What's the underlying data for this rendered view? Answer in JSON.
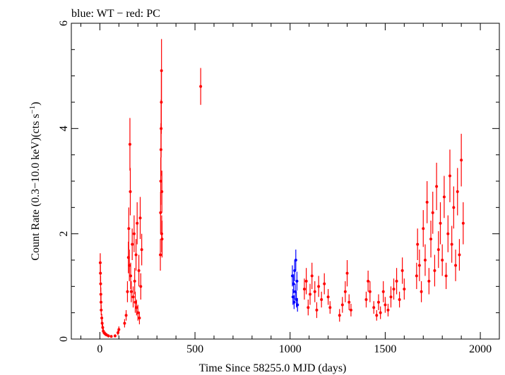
{
  "chart_data": {
    "type": "scatter",
    "title": "blue: WT − red: PC",
    "xlabel": "Time Since 58255.0 MJD (days)",
    "ylabel_main": "Count Rate (0.3−10.0 keV)(cts s",
    "ylabel_sup": "−1",
    "ylabel_close": ")",
    "xlim": [
      -150,
      2100
    ],
    "ylim": [
      0,
      6
    ],
    "x_ticks": [
      0,
      500,
      1000,
      1500,
      2000
    ],
    "y_ticks": [
      0,
      2,
      4,
      6
    ],
    "grid": false,
    "series": [
      {
        "color": "#ff0000",
        "points": [
          [
            2,
            1.45,
            0.18
          ],
          [
            3,
            1.25,
            0.16
          ],
          [
            4,
            1.05,
            0.15
          ],
          [
            5,
            0.85,
            0.13
          ],
          [
            6,
            0.7,
            0.12
          ],
          [
            7,
            0.55,
            0.1
          ],
          [
            10,
            0.4,
            0.08
          ],
          [
            12,
            0.3,
            0.07
          ],
          [
            15,
            0.22,
            0.06
          ],
          [
            18,
            0.15,
            0.05
          ],
          [
            22,
            0.12,
            0.04
          ],
          [
            28,
            0.1,
            0.04
          ],
          [
            35,
            0.08,
            0.03
          ],
          [
            45,
            0.06,
            0.03
          ],
          [
            60,
            0.05,
            0.02
          ],
          [
            80,
            0.06,
            0.03
          ],
          [
            95,
            0.12,
            0.05
          ],
          [
            100,
            0.18,
            0.06
          ],
          [
            130,
            0.3,
            0.08
          ],
          [
            138,
            0.45,
            0.1
          ],
          [
            145,
            0.9,
            0.2
          ],
          [
            150,
            1.55,
            0.3
          ],
          [
            152,
            2.1,
            0.4
          ],
          [
            155,
            1.4,
            0.3
          ],
          [
            158,
            3.7,
            0.5
          ],
          [
            160,
            2.8,
            0.45
          ],
          [
            162,
            1.2,
            0.25
          ],
          [
            165,
            0.9,
            0.2
          ],
          [
            170,
            1.8,
            0.3
          ],
          [
            175,
            0.8,
            0.2
          ],
          [
            180,
            2.0,
            0.35
          ],
          [
            183,
            1.1,
            0.25
          ],
          [
            186,
            0.7,
            0.2
          ],
          [
            190,
            1.6,
            0.3
          ],
          [
            193,
            0.6,
            0.15
          ],
          [
            196,
            2.2,
            0.4
          ],
          [
            200,
            0.5,
            0.15
          ],
          [
            205,
            1.3,
            0.3
          ],
          [
            208,
            0.4,
            0.12
          ],
          [
            212,
            2.3,
            0.4
          ],
          [
            215,
            1.0,
            0.25
          ],
          [
            220,
            1.7,
            0.3
          ],
          [
            318,
            1.6,
            0.3
          ],
          [
            319,
            2.4,
            0.4
          ],
          [
            320,
            3.0,
            0.45
          ],
          [
            321,
            3.6,
            0.5
          ],
          [
            322,
            4.0,
            0.55
          ],
          [
            323,
            4.5,
            0.6
          ],
          [
            324,
            5.1,
            0.6
          ],
          [
            325,
            2.0,
            0.35
          ],
          [
            326,
            2.8,
            0.4
          ],
          [
            327,
            1.9,
            0.35
          ],
          [
            530,
            4.8,
            0.35
          ],
          [
            1075,
            0.95,
            0.2
          ],
          [
            1085,
            1.1,
            0.25
          ],
          [
            1095,
            0.6,
            0.15
          ],
          [
            1105,
            0.85,
            0.2
          ],
          [
            1115,
            1.2,
            0.25
          ],
          [
            1130,
            0.9,
            0.2
          ],
          [
            1140,
            0.55,
            0.15
          ],
          [
            1150,
            1.0,
            0.2
          ],
          [
            1165,
            0.75,
            0.15
          ],
          [
            1180,
            1.05,
            0.2
          ],
          [
            1200,
            0.8,
            0.15
          ],
          [
            1210,
            0.6,
            0.12
          ],
          [
            1260,
            0.45,
            0.12
          ],
          [
            1275,
            0.65,
            0.15
          ],
          [
            1290,
            0.9,
            0.2
          ],
          [
            1300,
            1.25,
            0.25
          ],
          [
            1310,
            0.7,
            0.15
          ],
          [
            1320,
            0.55,
            0.12
          ],
          [
            1400,
            0.75,
            0.15
          ],
          [
            1410,
            1.1,
            0.2
          ],
          [
            1420,
            0.9,
            0.2
          ],
          [
            1440,
            0.6,
            0.12
          ],
          [
            1455,
            0.45,
            0.1
          ],
          [
            1465,
            0.7,
            0.15
          ],
          [
            1475,
            0.5,
            0.12
          ],
          [
            1490,
            0.9,
            0.2
          ],
          [
            1500,
            0.65,
            0.15
          ],
          [
            1515,
            0.55,
            0.12
          ],
          [
            1530,
            0.8,
            0.2
          ],
          [
            1545,
            0.95,
            0.2
          ],
          [
            1560,
            1.1,
            0.25
          ],
          [
            1575,
            0.75,
            0.15
          ],
          [
            1590,
            1.3,
            0.25
          ],
          [
            1600,
            0.95,
            0.2
          ],
          [
            1665,
            1.2,
            0.25
          ],
          [
            1670,
            1.8,
            0.3
          ],
          [
            1680,
            1.4,
            0.3
          ],
          [
            1690,
            0.9,
            0.2
          ],
          [
            1700,
            2.1,
            0.35
          ],
          [
            1710,
            1.5,
            0.3
          ],
          [
            1720,
            2.6,
            0.4
          ],
          [
            1730,
            1.1,
            0.25
          ],
          [
            1740,
            1.9,
            0.35
          ],
          [
            1750,
            2.4,
            0.4
          ],
          [
            1760,
            1.3,
            0.3
          ],
          [
            1770,
            2.9,
            0.45
          ],
          [
            1780,
            1.7,
            0.35
          ],
          [
            1790,
            2.2,
            0.4
          ],
          [
            1800,
            1.5,
            0.3
          ],
          [
            1810,
            2.7,
            0.4
          ],
          [
            1820,
            1.2,
            0.25
          ],
          [
            1830,
            2.0,
            0.35
          ],
          [
            1840,
            3.1,
            0.5
          ],
          [
            1850,
            1.8,
            0.35
          ],
          [
            1860,
            2.5,
            0.4
          ],
          [
            1870,
            1.4,
            0.3
          ],
          [
            1880,
            2.8,
            0.45
          ],
          [
            1890,
            1.6,
            0.3
          ],
          [
            1900,
            3.4,
            0.5
          ],
          [
            1910,
            2.2,
            0.4
          ]
        ]
      },
      {
        "color": "#0000ff",
        "points": [
          [
            1012,
            1.2,
            0.2
          ],
          [
            1015,
            0.8,
            0.15
          ],
          [
            1018,
            1.05,
            0.18
          ],
          [
            1021,
            0.7,
            0.13
          ],
          [
            1024,
            1.3,
            0.2
          ],
          [
            1027,
            0.9,
            0.15
          ],
          [
            1030,
            1.5,
            0.2
          ],
          [
            1033,
            0.75,
            0.15
          ],
          [
            1036,
            1.1,
            0.18
          ],
          [
            1039,
            0.65,
            0.13
          ]
        ]
      }
    ]
  }
}
